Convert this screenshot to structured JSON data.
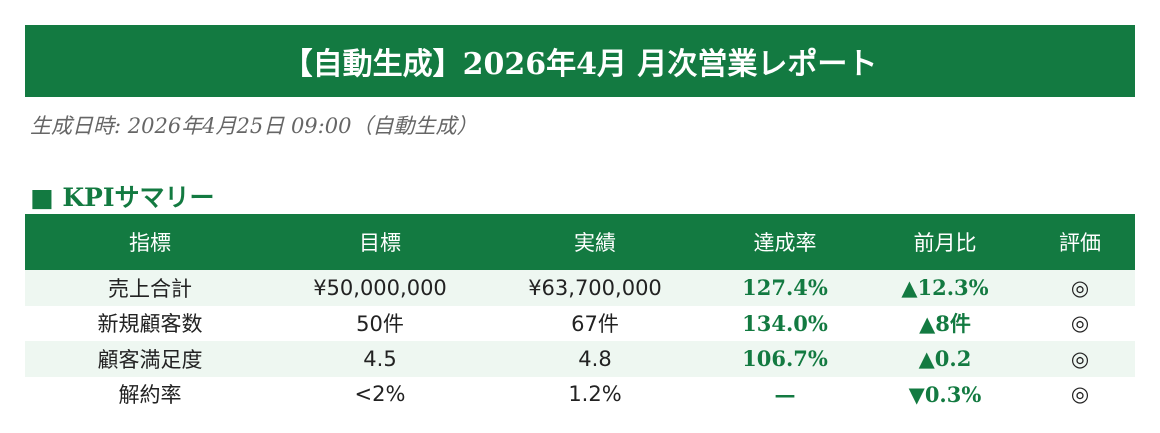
{
  "title": "【自動生成】2026年4月 月次営業レポート",
  "generated": "生成日時: 2026年4月25日 09:00（自動生成）",
  "section": "■ KPIサマリー",
  "table": {
    "headers": [
      "指標",
      "目標",
      "実績",
      "達成率",
      "前月比",
      "評価"
    ],
    "rows": [
      [
        "売上合計",
        "¥50,000,000",
        "¥63,700,000",
        "127.4%",
        "▲12.3%",
        "◎"
      ],
      [
        "新規顧客数",
        "50件",
        "67件",
        "134.0%",
        "▲8件",
        "◎"
      ],
      [
        "顧客満足度",
        "4.5",
        "4.8",
        "106.7%",
        "▲0.2",
        "◎"
      ],
      [
        "解約率",
        "<2%",
        "1.2%",
        "—",
        "▼0.3%",
        "◎"
      ]
    ]
  },
  "colors": {
    "accent": "#137a41",
    "row_alt": "#eef7f1"
  }
}
